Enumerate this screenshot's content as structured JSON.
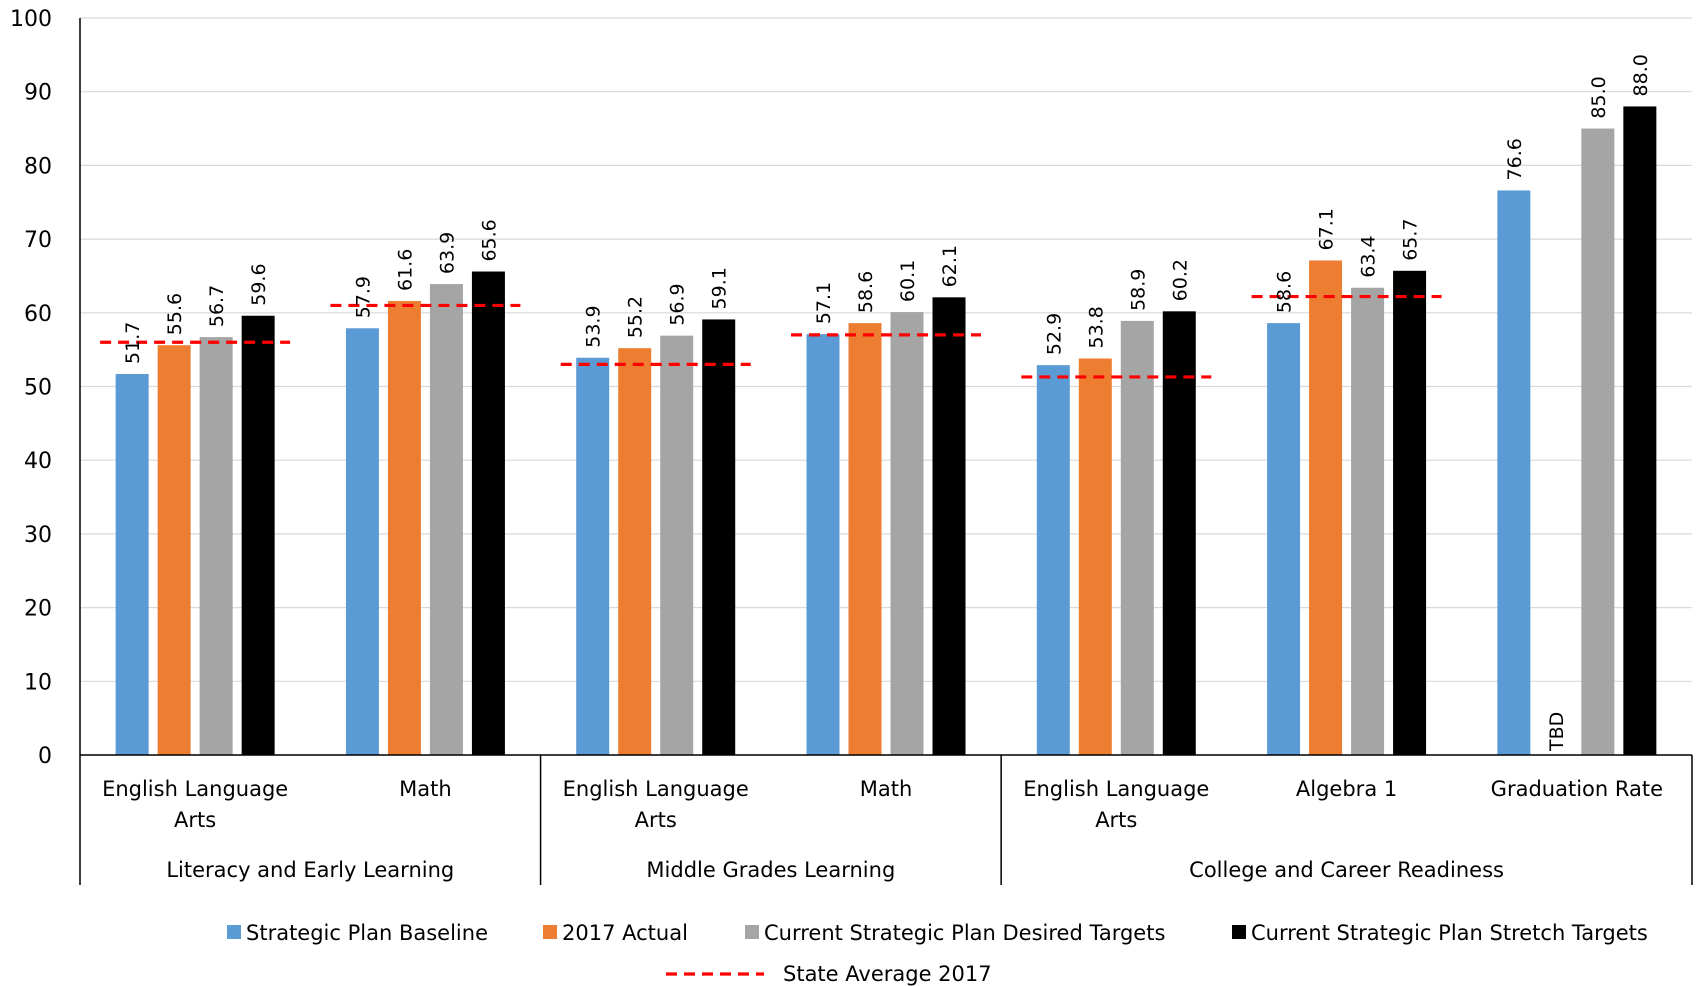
{
  "chart_data": {
    "type": "bar",
    "groups": [
      {
        "name": "Literacy and Early Learning",
        "categories": [
          "English Language Arts",
          "Math"
        ]
      },
      {
        "name": "Middle Grades Learning",
        "categories": [
          "English Language Arts",
          "Math"
        ]
      },
      {
        "name": "College and Career Readiness",
        "categories": [
          "English Language Arts",
          "Algebra 1",
          "Graduation Rate"
        ]
      }
    ],
    "categories": [
      "English Language Arts",
      "Math",
      "English Language Arts",
      "Math",
      "English Language Arts",
      "Algebra 1",
      "Graduation Rate"
    ],
    "series": [
      {
        "name": "Strategic Plan Baseline",
        "color": "#5B9BD5",
        "values": [
          51.7,
          57.9,
          53.9,
          57.1,
          52.9,
          58.6,
          76.6
        ],
        "labels": [
          "51.7",
          "57.9",
          "53.9",
          "57.1",
          "52.9",
          "58.6",
          "76.6"
        ]
      },
      {
        "name": "2017 Actual",
        "color": "#ED7D31",
        "values": [
          55.6,
          61.6,
          55.2,
          58.6,
          53.8,
          67.1,
          null
        ],
        "labels": [
          "55.6",
          "61.6",
          "55.2",
          "58.6",
          "53.8",
          "67.1",
          "TBD"
        ]
      },
      {
        "name": "Current Strategic Plan Desired Targets",
        "color": "#A5A5A5",
        "values": [
          56.7,
          63.9,
          56.9,
          60.1,
          58.9,
          63.4,
          85.0
        ],
        "labels": [
          "56.7",
          "63.9",
          "56.9",
          "60.1",
          "58.9",
          "63.4",
          "85.0"
        ]
      },
      {
        "name": "Current Strategic Plan Stretch Targets",
        "color": "#000000",
        "values": [
          59.6,
          65.6,
          59.1,
          62.1,
          60.2,
          65.7,
          88.0
        ],
        "labels": [
          "59.6",
          "65.6",
          "59.1",
          "62.1",
          "60.2",
          "65.7",
          "88.0"
        ]
      }
    ],
    "reference_line": {
      "name": "State Average 2017",
      "color": "#FF0000",
      "style": "dashed",
      "values": [
        56,
        61,
        53,
        57,
        51.3,
        62.2,
        null
      ]
    },
    "ylim": [
      0,
      100
    ],
    "yticks": [
      0,
      10,
      20,
      30,
      40,
      50,
      60,
      70,
      80,
      90,
      100
    ],
    "grid": true,
    "legend_position": "bottom",
    "title": "",
    "xlabel": "",
    "ylabel": ""
  }
}
